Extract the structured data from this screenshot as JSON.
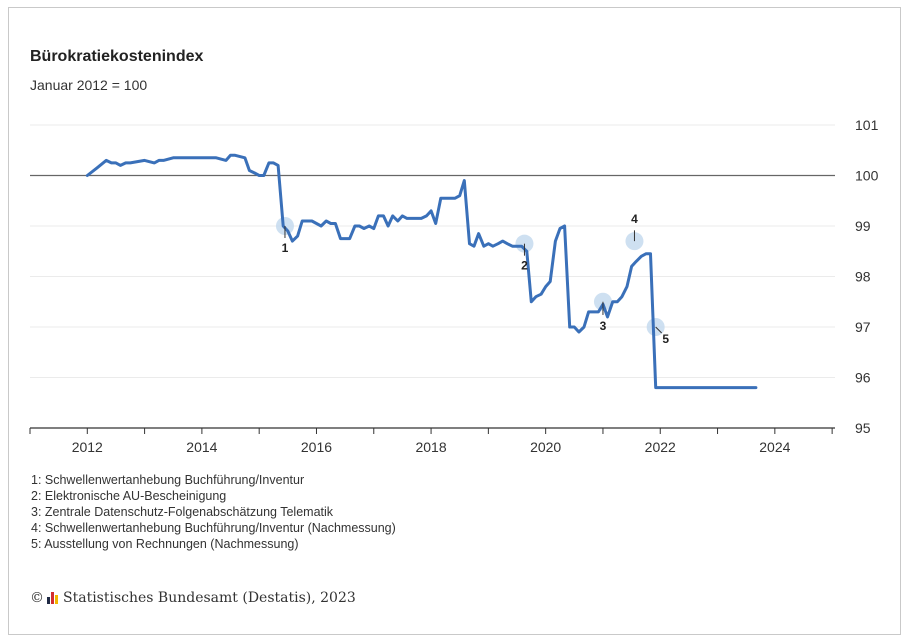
{
  "colors": {
    "line": "#3a70b9",
    "marker": "#c5dbee",
    "baseline": "#666666",
    "grid": "#ebebeb"
  },
  "chart_data": {
    "type": "line",
    "title": "Bürokratiekostenindex",
    "subtitle": "Januar 2012 = 100",
    "xlabel": "",
    "ylabel": "",
    "xlim": [
      2011.0,
      2025.05
    ],
    "ylim": [
      95,
      101
    ],
    "x_ticks": [
      "2012",
      "2014",
      "2016",
      "2018",
      "2020",
      "2022",
      "2024"
    ],
    "y_ticks": [
      "95",
      "96",
      "97",
      "98",
      "99",
      "100",
      "101"
    ],
    "y_axis_position": "right",
    "grid": true,
    "baseline": 100,
    "series": [
      {
        "x": [
          2012.0,
          2012.17,
          2012.33,
          2012.42,
          2012.5,
          2012.58,
          2012.67,
          2012.75,
          2013.0,
          2013.17,
          2013.25,
          2013.33,
          2013.5,
          2013.75,
          2014.0,
          2014.25,
          2014.42,
          2014.5,
          2014.58,
          2014.75,
          2014.83,
          2014.92,
          2015.0,
          2015.08,
          2015.17,
          2015.25,
          2015.33,
          2015.42,
          2015.5,
          2015.58,
          2015.67,
          2015.75,
          2015.83,
          2015.92,
          2016.0,
          2016.08,
          2016.17,
          2016.25,
          2016.33,
          2016.42,
          2016.5,
          2016.58,
          2016.67,
          2016.75,
          2016.83,
          2016.92,
          2017.0,
          2017.08,
          2017.17,
          2017.25,
          2017.33,
          2017.42,
          2017.5,
          2017.58,
          2017.67,
          2017.75,
          2017.83,
          2017.92,
          2018.0,
          2018.08,
          2018.17,
          2018.25,
          2018.33,
          2018.42,
          2018.5,
          2018.58,
          2018.67,
          2018.75,
          2018.83,
          2018.92,
          2019.0,
          2019.08,
          2019.17,
          2019.25,
          2019.33,
          2019.42,
          2019.5,
          2019.58,
          2019.67,
          2019.75,
          2019.83,
          2019.92,
          2020.0,
          2020.08,
          2020.17,
          2020.25,
          2020.33,
          2020.42,
          2020.5,
          2020.58,
          2020.67,
          2020.75,
          2020.83,
          2020.92,
          2021.0,
          2021.08,
          2021.17,
          2021.25,
          2021.33,
          2021.42,
          2021.5,
          2021.58,
          2021.67,
          2021.75,
          2021.83,
          2021.92,
          2022.0,
          2022.08,
          2022.17,
          2022.25,
          2022.33,
          2022.42,
          2022.5,
          2022.58,
          2022.67,
          2022.75,
          2022.83,
          2022.92,
          2023.0,
          2023.08,
          2023.17,
          2023.25,
          2023.33,
          2023.42,
          2023.5,
          2023.58,
          2023.67
        ],
        "y": [
          100.0,
          100.15,
          100.3,
          100.25,
          100.25,
          100.2,
          100.25,
          100.25,
          100.3,
          100.25,
          100.3,
          100.3,
          100.35,
          100.35,
          100.35,
          100.35,
          100.3,
          100.4,
          100.4,
          100.35,
          100.1,
          100.05,
          100.0,
          100.0,
          100.25,
          100.25,
          100.2,
          99.0,
          98.9,
          98.7,
          98.8,
          99.1,
          99.1,
          99.1,
          99.05,
          99.0,
          99.1,
          99.05,
          99.05,
          98.75,
          98.75,
          98.75,
          99.0,
          99.0,
          98.95,
          99.0,
          98.95,
          99.2,
          99.2,
          99.0,
          99.2,
          99.1,
          99.2,
          99.15,
          99.15,
          99.15,
          99.15,
          99.2,
          99.3,
          99.05,
          99.55,
          99.55,
          99.55,
          99.55,
          99.6,
          99.9,
          98.65,
          98.6,
          98.85,
          98.6,
          98.65,
          98.6,
          98.65,
          98.7,
          98.65,
          98.6,
          98.6,
          98.6,
          98.5,
          97.5,
          97.6,
          97.65,
          97.8,
          97.9,
          98.7,
          98.95,
          99.0,
          97.0,
          97.0,
          96.9,
          97.0,
          97.3,
          97.3,
          97.3,
          97.45,
          97.2,
          97.5,
          97.5,
          97.6,
          97.8,
          98.2,
          98.3,
          98.4,
          98.45,
          98.45,
          95.8,
          95.8,
          95.8,
          95.8,
          95.8,
          95.8,
          95.8,
          95.8,
          95.8,
          95.8,
          95.8,
          95.8,
          95.8,
          95.8,
          95.8,
          95.8,
          95.8,
          95.8,
          95.8,
          95.8,
          95.8,
          95.8
        ]
      }
    ],
    "annotations": [
      {
        "label": "1",
        "x": 2015.45,
        "y": 99.0
      },
      {
        "label": "2",
        "x": 2019.63,
        "y": 98.65
      },
      {
        "label": "3",
        "x": 2021.0,
        "y": 97.5
      },
      {
        "label": "4",
        "x": 2021.55,
        "y": 98.7
      },
      {
        "label": "5",
        "x": 2021.92,
        "y": 97.0
      }
    ]
  },
  "notes": [
    "1: Schwellenwertanhebung Buchführung/Inventur",
    "2: Elektronische AU-Bescheinigung",
    "3: Zentrale Datenschutz-Folgenabschätzung Telematik",
    "4: Schwellenwertanhebung Buchführung/Inventur (Nachmessung)",
    "5: Ausstellung von Rechnungen (Nachmessung)"
  ],
  "source": {
    "symbol": "©",
    "text": "Statistisches Bundesamt (Destatis), 2023"
  }
}
